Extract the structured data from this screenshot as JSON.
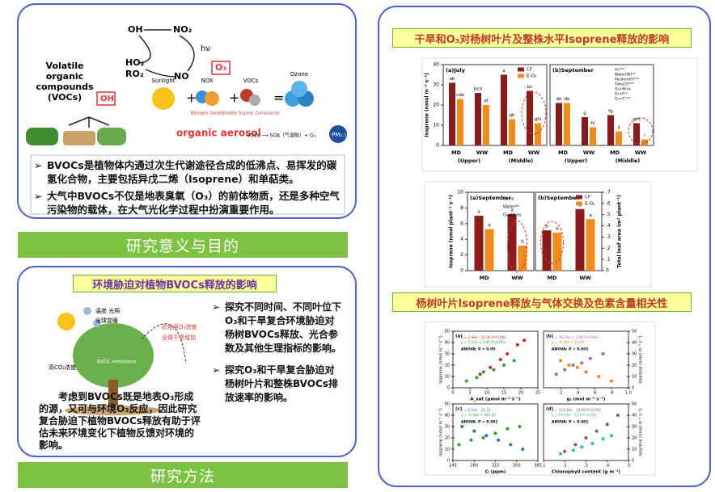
{
  "panel_significance": {
    "diagram": {
      "oh": "OH",
      "no2": "NO₂",
      "hv": "hν",
      "no": "NO",
      "ho2": "HO₂",
      "ro2": "RO₂",
      "o3": "O₃",
      "vocs_lines": [
        "Volatile",
        "organic",
        "compounds",
        "(VOCs)"
      ],
      "oh_box": "OH",
      "sunlight": "Sunlight",
      "nox": "NOX",
      "nox_sub": "Nitrogen Oxides",
      "vocs": "VOCs",
      "vocs_sub": "Volatile Organic Compounds",
      "ozone": "Ozone",
      "aerosol": "organic aerosol",
      "reaction": "VOCs ⟶ SOA（气溶胶）+ O₃",
      "pm": "PM₂.₅"
    },
    "bullets": [
      "BVOCs是植物体内通过次生代谢途径合成的低沸点、易挥发的碳氢化合物，主要包括异戊二烯（Isoprene）和单萜类。",
      "大气中BVOCs不仅是地表臭氧（O₃）的前体物质，还是多种空气污染物的载体，在大气光化学过程中扮演重要作用。"
    ]
  },
  "banner_1": "研究意义与目的",
  "panel_stress": {
    "title": "环境胁迫对植物BVOCs释放的影响",
    "figure": {
      "temp_light": "温度 光照",
      "warming": "全球变暖",
      "ozone": "近地层O₃浓度",
      "drought": "全球干旱增加",
      "co2": "高CO₂浓度",
      "emissions": "BVOC emissions"
    },
    "bullets": [
      "探究不同时间、不同叶位下O₃和干旱复合环境胁迫对杨树BVOCs释放、光合参数及其他生理指标的影响。",
      "探究O₃和干旱复合胁迫对杨树叶片和整株BVOCs排放速率的影响。"
    ],
    "caption": "考虑到BVOCs既是地表O₃形成的源，又可与环境O₃反应，因此研究复合胁迫下植物BVOCs释放有助于评估未来环境变化下植物反馈对环境的影响。"
  },
  "banner_2": "研究方法",
  "panel_results": {
    "title_1": "干旱和O₃对杨树叶片及整株水平Isoprene释放的影响",
    "bar_chart_1": {
      "type": "bar",
      "y_label": "Isoprene (nmol m⁻² s⁻¹)",
      "ylim": [
        0,
        40
      ],
      "yticks": [
        0,
        10,
        20,
        30,
        40
      ],
      "notes": [
        "O₃***",
        "Water(W)**",
        "Position(P)***",
        "Time(T)***",
        "O₃×W:ns",
        "O₃×P:*",
        "O₃×T:***"
      ],
      "panels": [
        {
          "label": "(a)July",
          "categories": [
            "MD",
            "WW",
            "MD",
            "WW"
          ],
          "groups": [
            "(Upper)",
            "(Middle)"
          ],
          "series": [
            {
              "name": "CF",
              "color": "#8b1a1a",
              "values": [
                31,
                26,
                35,
                27
              ],
              "letters": [
                "ab",
                "bcd",
                "a",
                "bc"
              ]
            },
            {
              "name": "E-O₃",
              "color": "#f08c1c",
              "values": [
                23,
                20,
                13,
                11
              ],
              "letters": [
                "cde",
                "ef",
                "gh",
                "ghi"
              ]
            }
          ]
        },
        {
          "label": "(b)September",
          "categories": [
            "MD",
            "WW",
            "MD",
            "WW"
          ],
          "groups": [
            "(Upper)",
            "(Middle)"
          ],
          "series": [
            {
              "name": "CF",
              "color": "#8b1a1a",
              "values": [
                21,
                14,
                15,
                11
              ],
              "letters": [
                "de",
                "g",
                "fg",
                "ghi"
              ]
            },
            {
              "name": "E-O₃",
              "color": "#f08c1c",
              "values": [
                21,
                9,
                7,
                3
              ],
              "letters": [
                "de",
                "hi",
                "ij",
                "i"
              ]
            }
          ]
        }
      ]
    },
    "bar_chart_2": {
      "type": "bar",
      "y_label": "Isoprene (nmol plant⁻¹ s⁻¹)",
      "y2_label": "Total leaf area (m² plant⁻¹)",
      "ylim": [
        0,
        10
      ],
      "yticks": [
        0,
        2,
        4,
        6,
        8,
        10
      ],
      "y2lim": [
        0,
        0.7
      ],
      "y2ticks": [
        0,
        {
          "value": 0.1,
          "label": ".1"
        },
        {
          "value": 0.2,
          "label": ".2"
        },
        {
          "value": 0.3,
          "label": ".3"
        },
        {
          "value": 0.4,
          "label": ".4"
        },
        {
          "value": 0.5,
          "label": ".5"
        },
        {
          "value": 0.6,
          "label": ".6"
        },
        {
          "value": 0.7,
          "label": ".7"
        }
      ],
      "notes": [
        "O₃:ns",
        "Water**",
        "O₃×W:ns"
      ],
      "panels": [
        {
          "label": "(a)September",
          "axis": "y",
          "categories": [
            "MD",
            "WW"
          ],
          "series": [
            {
              "name": "CF",
              "color": "#8b1a1a",
              "values": [
                7,
                7.2
              ],
              "letters": [
                "a",
                "a"
              ]
            },
            {
              "name": "E-O₃",
              "color": "#f08c1c",
              "values": [
                5.3,
                3.2
              ],
              "letters": [
                "a",
                "b"
              ]
            }
          ]
        },
        {
          "label": "(b)September",
          "axis": "y2",
          "categories": [
            "MD",
            "WW"
          ],
          "series": [
            {
              "name": "CF",
              "color": "#8b1a1a",
              "values": [
                0.36,
                0.55
              ],
              "letters": [
                "b",
                "a"
              ]
            },
            {
              "name": "E-O₃",
              "color": "#f08c1c",
              "values": [
                0.34,
                0.46
              ],
              "letters": [
                "b",
                "a"
              ]
            }
          ]
        }
      ]
    },
    "title_2": "杨树叶片Isoprene释放与气体交换及色素含量相关性",
    "scatter": {
      "type": "scatter",
      "panels": [
        {
          "label": "(a)",
          "x_label": "A_sat (μmol m⁻² s⁻¹)",
          "y_label": "Isoprene (nmol m⁻² s⁻¹)",
          "xlim": [
            0,
            25
          ],
          "xticks": [
            0,
            5,
            10,
            15,
            20,
            25
          ],
          "ylim": [
            0,
            50
          ],
          "yticks": [
            0,
            10,
            20,
            30,
            40,
            50
          ],
          "equations": [
            "y = 2.40x - 10.36  P<0.001",
            "y = 1.12x + 3.05  P<0.001"
          ],
          "anova": "ANOVA: P = 0.05",
          "series": [
            {
              "color": "#d62728",
              "x": [
                8,
                11,
                14,
                16,
                19,
                21
              ],
              "y": [
                12,
                18,
                25,
                30,
                38,
                42
              ]
            },
            {
              "color": "#2ca02c",
              "x": [
                4,
                7,
                9,
                12,
                15,
                18
              ],
              "y": [
                6,
                9,
                14,
                16,
                20,
                24
              ]
            }
          ]
        },
        {
          "label": "(b)",
          "x_label": "gₛ (mol m⁻² s⁻¹)",
          "y_label": "Isoprene (nmol m⁻² s⁻¹)",
          "xlim": [
            0,
            1
          ],
          "xticks": [
            {
              "value": 0.2,
              "label": ".2"
            },
            {
              "value": 0.4,
              "label": ".4"
            },
            {
              "value": 0.6,
              "label": ".6"
            },
            {
              "value": 0.8,
              "label": ".8"
            },
            {
              "value": 1,
              "label": "1.0"
            }
          ],
          "ylim": [
            0,
            50
          ],
          "yticks": [
            0,
            10,
            20,
            30,
            40,
            50
          ],
          "equations": [
            "y = 26.33x + 7.64  P<0.001",
            "y = -8.28x + 21.60"
          ],
          "anova": "ANOVA: P < 0.001",
          "series": [
            {
              "color": "#9467bd",
              "x": [
                0.15,
                0.25,
                0.35,
                0.45,
                0.55,
                0.7
              ],
              "y": [
                12,
                16,
                20,
                22,
                26,
                30
              ]
            },
            {
              "color": "#ff7f0e",
              "x": [
                0.2,
                0.3,
                0.4,
                0.5,
                0.65,
                0.8
              ],
              "y": [
                24,
                20,
                18,
                14,
                10,
                6
              ]
            }
          ]
        },
        {
          "label": "(c)",
          "x_label": "Cᵢ (ppm)",
          "y_label": "Isoprene (nmol m⁻² s⁻¹)",
          "xlim": [
            245,
            385
          ],
          "xticks": [
            245,
            280,
            315,
            350,
            385
          ],
          "ylim": [
            0,
            50
          ],
          "yticks": [
            0,
            10,
            20,
            30,
            40,
            50
          ],
          "equations": [
            "y = 0.14x - 22.31",
            "y = -0.32x + 105.22"
          ],
          "anova": "ANOVA: P < 0.001",
          "series": [
            {
              "color": "#1f77b4",
              "x": [
                260,
                280,
                300,
                320,
                340,
                360
              ],
              "y": [
                30,
                26,
                22,
                18,
                14,
                10
              ]
            },
            {
              "color": "#2ca02c",
              "x": [
                255,
                275,
                295,
                315,
                335,
                355
              ],
              "y": [
                14,
                18,
                20,
                24,
                28,
                30
              ]
            }
          ]
        },
        {
          "label": "(d)",
          "x_label": "Chlorophyll content (g m⁻²)",
          "y_label": "Isoprene (nmol m⁻² s⁻¹)",
          "xlim": [
            0.1,
            0.5
          ],
          "xticks": [
            {
              "value": 0.1,
              "label": ".1"
            },
            {
              "value": 0.2,
              "label": ".2"
            },
            {
              "value": 0.3,
              "label": ".3"
            },
            {
              "value": 0.4,
              "label": ".4"
            },
            {
              "value": 0.5,
              "label": ".5"
            }
          ],
          "ylim": [
            0,
            50
          ],
          "yticks": [
            0,
            10,
            20,
            30,
            40,
            50
          ],
          "equations": [
            "y = 114.26x - 12.08  P<0.001",
            "y = 64.18x - 3.11  P<0.001"
          ],
          "anova": "ANOVA: P < 0.001",
          "series": [
            {
              "color": "#8c564b",
              "x": [
                0.2,
                0.25,
                0.3,
                0.35,
                0.4,
                0.45
              ],
              "y": [
                8,
                14,
                20,
                26,
                32,
                40
              ]
            },
            {
              "color": "#17becf",
              "x": [
                0.18,
                0.24,
                0.28,
                0.33,
                0.38,
                0.42
              ],
              "y": [
                6,
                9,
                12,
                15,
                19,
                22
              ]
            }
          ]
        }
      ]
    }
  }
}
